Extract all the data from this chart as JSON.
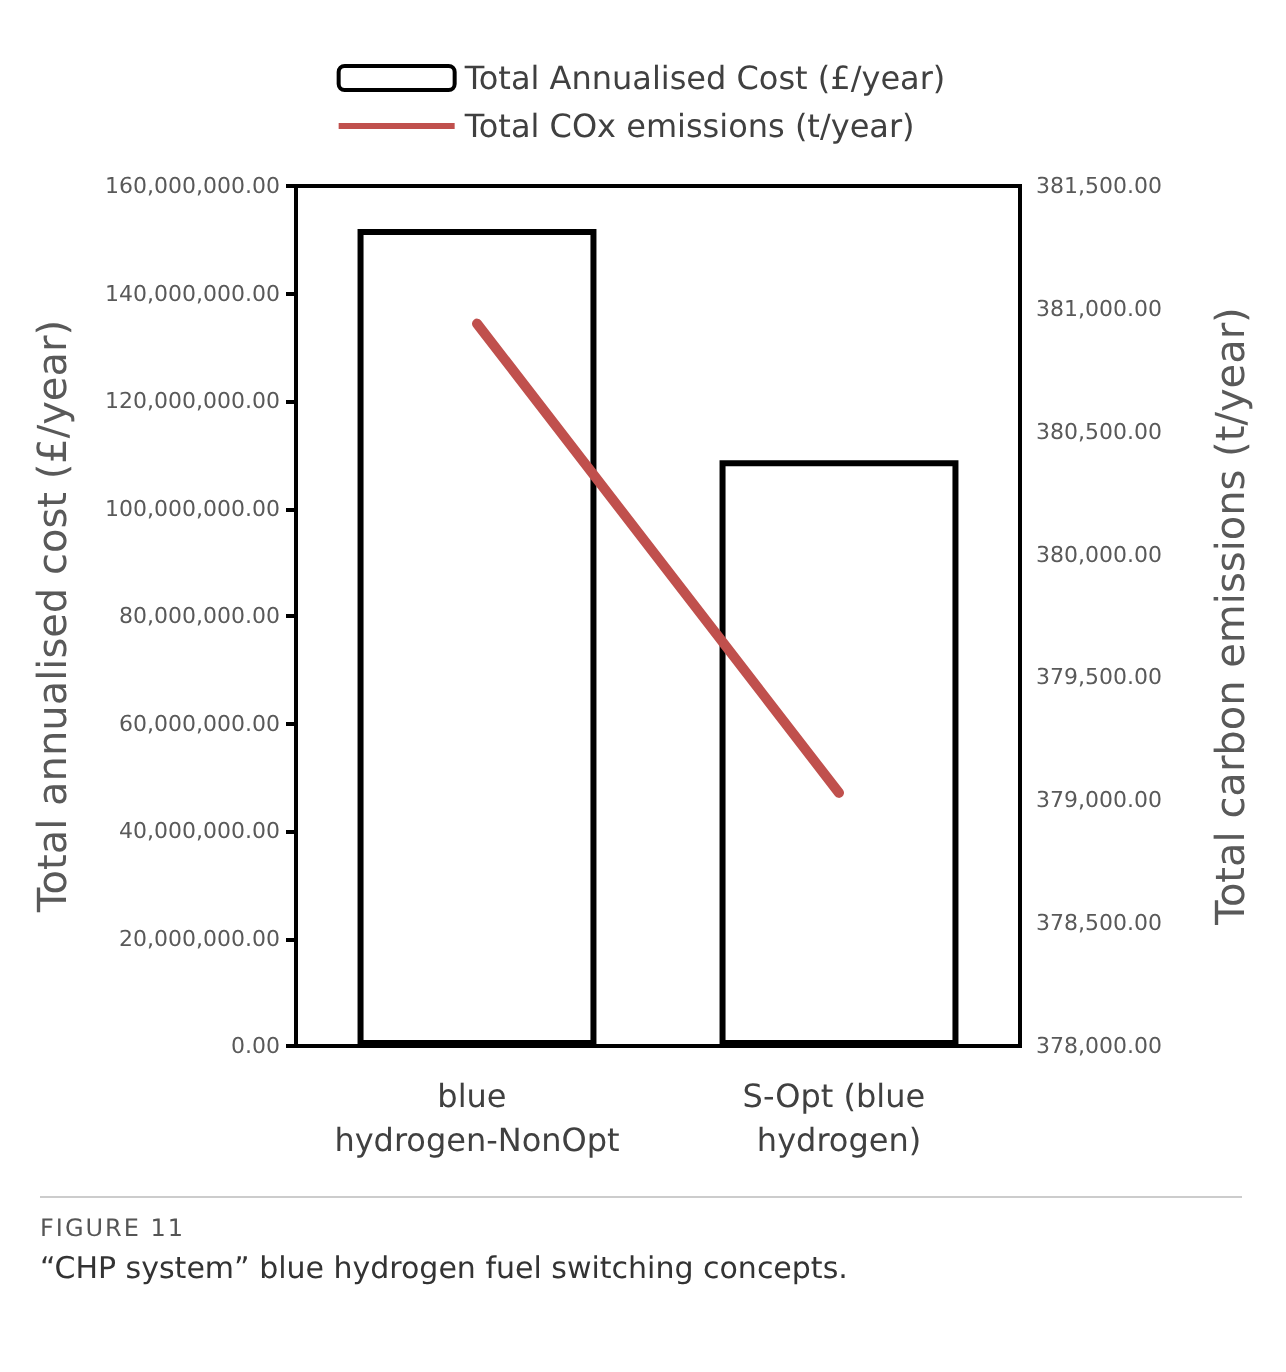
{
  "chart_data": {
    "type": "bar",
    "categories": [
      "blue hydrogen-NonOpt",
      "S-Opt (blue hydrogen)"
    ],
    "series": [
      {
        "name": "Total Annualised Cost (£/year)",
        "color": "#000000",
        "values": [
          152000000,
          109000000
        ]
      },
      {
        "name": "Total COx emissions (t/year)",
        "type": "line",
        "axis": "y2",
        "color": "#c0504d",
        "values": [
          380940,
          379030
        ]
      }
    ],
    "ylabel": "Total annualised cost (£/year)",
    "y2label": "Total carbon emissions (t/year)",
    "ylim": [
      0,
      160000000
    ],
    "yticks": [
      {
        "value": 0,
        "label": "0.00"
      },
      {
        "value": 20000000,
        "label": "20,000,000.00"
      },
      {
        "value": 40000000,
        "label": "40,000,000.00"
      },
      {
        "value": 60000000,
        "label": "60,000,000.00"
      },
      {
        "value": 80000000,
        "label": "80,000,000.00"
      },
      {
        "value": 100000000,
        "label": "100,000,000.00"
      },
      {
        "value": 120000000,
        "label": "120,000,000.00"
      },
      {
        "value": 140000000,
        "label": "140,000,000.00"
      },
      {
        "value": 160000000,
        "label": "160,000,000.00"
      }
    ],
    "y2lim": [
      378000,
      381500
    ],
    "y2ticks": [
      {
        "value": 378000,
        "label": "378,000.00"
      },
      {
        "value": 378500,
        "label": "378,500.00"
      },
      {
        "value": 379000,
        "label": "379,000.00"
      },
      {
        "value": 379500,
        "label": "379,500.00"
      },
      {
        "value": 380000,
        "label": "380,000.00"
      },
      {
        "value": 380500,
        "label": "380,500.00"
      },
      {
        "value": 381000,
        "label": "381,000.00"
      },
      {
        "value": 381500,
        "label": "381,500.00"
      }
    ],
    "legend": "top",
    "marker": "none",
    "annotations": [
      "FIGURE 11",
      "“CHP system” blue hydrogen fuel switching concepts."
    ]
  }
}
